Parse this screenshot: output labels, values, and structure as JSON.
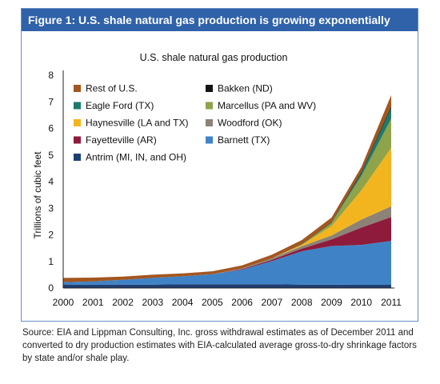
{
  "figure": {
    "banner": "Figure 1: U.S. shale natural gas production is growing exponentially"
  },
  "source_note": "Source: EIA and Lippman Consulting, Inc. gross withdrawal estimates as of December 2011 and converted to dry production estimates with EIA-calculated average gross-to-dry shrinkage factors by state and/or shale play.",
  "chart_data": {
    "type": "area",
    "stacked": true,
    "title": "U.S. shale natural gas production",
    "xlabel": "",
    "ylabel": "Trillions of cubic feet",
    "x": [
      "2000",
      "2001",
      "2002",
      "2003",
      "2004",
      "2005",
      "2006",
      "2007",
      "2008",
      "2009",
      "2010",
      "2011"
    ],
    "ylim": [
      0,
      8
    ],
    "yticks": [
      0,
      1,
      2,
      3,
      4,
      5,
      6,
      7,
      8
    ],
    "grid": false,
    "legend_position": "top-left",
    "legend_order": [
      "Rest of U.S.",
      "Bakken (ND)",
      "Eagle Ford (TX)",
      "Marcellus (PA and WV)",
      "Haynesville (LA and TX)",
      "Woodford (OK)",
      "Fayetteville (AR)",
      "Barnett (TX)",
      "Antrim (MI, IN, and OH)"
    ],
    "series": [
      {
        "name": "Antrim (MI, IN, and OH)",
        "color": "#1f3f73",
        "values": [
          0.12,
          0.13,
          0.13,
          0.13,
          0.14,
          0.14,
          0.14,
          0.14,
          0.13,
          0.13,
          0.12,
          0.12
        ]
      },
      {
        "name": "Barnett (TX)",
        "color": "#3f83c6",
        "values": [
          0.1,
          0.12,
          0.18,
          0.25,
          0.3,
          0.38,
          0.55,
          0.87,
          1.25,
          1.45,
          1.5,
          1.65
        ]
      },
      {
        "name": "Fayetteville (AR)",
        "color": "#8e1b3c",
        "values": [
          0,
          0,
          0,
          0,
          0,
          0,
          0.02,
          0.05,
          0.1,
          0.25,
          0.65,
          0.9
        ]
      },
      {
        "name": "Woodford (OK)",
        "color": "#8c8276",
        "values": [
          0,
          0,
          0,
          0,
          0,
          0,
          0.03,
          0.06,
          0.09,
          0.15,
          0.3,
          0.4
        ]
      },
      {
        "name": "Haynesville (LA and TX)",
        "color": "#f3b51f",
        "values": [
          0,
          0,
          0,
          0,
          0,
          0,
          0,
          0,
          0.05,
          0.35,
          1.1,
          2.2
        ]
      },
      {
        "name": "Marcellus (PA and WV)",
        "color": "#8ea34a",
        "values": [
          0,
          0,
          0,
          0,
          0,
          0,
          0,
          0,
          0.02,
          0.13,
          0.55,
          1.1
        ]
      },
      {
        "name": "Eagle Ford (TX)",
        "color": "#1c7a6c",
        "values": [
          0,
          0,
          0,
          0,
          0,
          0,
          0,
          0,
          0,
          0,
          0.1,
          0.4
        ]
      },
      {
        "name": "Bakken (ND)",
        "color": "#141414",
        "values": [
          0,
          0,
          0,
          0,
          0,
          0,
          0,
          0,
          0.01,
          0.02,
          0.04,
          0.06
        ]
      },
      {
        "name": "Rest of U.S.",
        "color": "#a3561f",
        "values": [
          0.16,
          0.14,
          0.12,
          0.12,
          0.11,
          0.11,
          0.11,
          0.13,
          0.15,
          0.17,
          0.19,
          0.42
        ]
      }
    ]
  }
}
